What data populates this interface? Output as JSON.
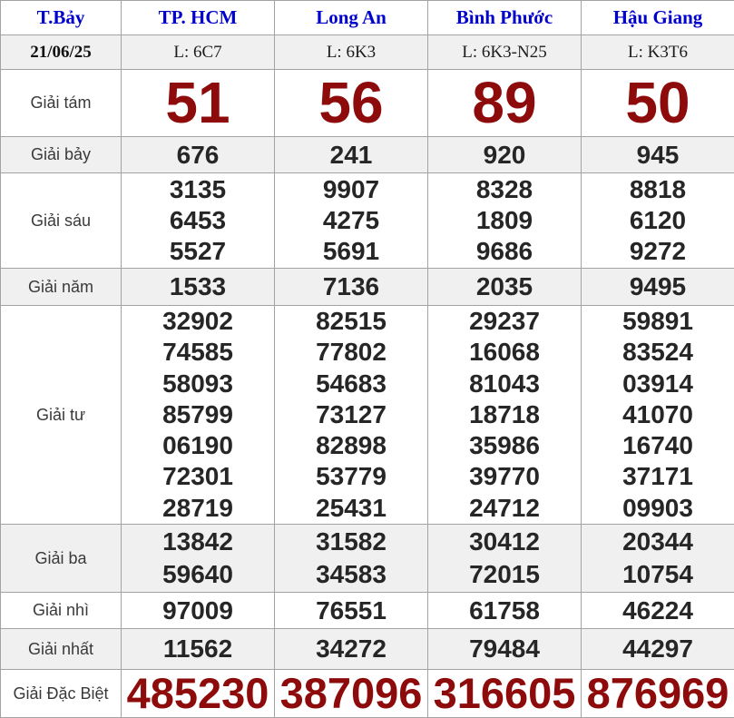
{
  "header": {
    "day": "T.Bảy",
    "provinces": [
      "TP. HCM",
      "Long An",
      "Bình Phước",
      "Hậu Giang"
    ]
  },
  "subheader": {
    "date": "21/06/25",
    "codes": [
      "L: 6C7",
      "L: 6K3",
      "L: 6K3-N25",
      "L: K3T6"
    ]
  },
  "prize_rows": [
    {
      "id": "giai-tam",
      "label": "Giải tám",
      "style": "r-tam",
      "cells": [
        [
          "51"
        ],
        [
          "56"
        ],
        [
          "89"
        ],
        [
          "50"
        ]
      ]
    },
    {
      "id": "giai-bay",
      "label": "Giải bảy",
      "style": "r-bay",
      "cells": [
        [
          "676"
        ],
        [
          "241"
        ],
        [
          "920"
        ],
        [
          "945"
        ]
      ]
    },
    {
      "id": "giai-sau",
      "label": "Giải sáu",
      "style": "r-sau",
      "cells": [
        [
          "3135",
          "6453",
          "5527"
        ],
        [
          "9907",
          "4275",
          "5691"
        ],
        [
          "8328",
          "1809",
          "9686"
        ],
        [
          "8818",
          "6120",
          "9272"
        ]
      ]
    },
    {
      "id": "giai-nam",
      "label": "Giải năm",
      "style": "r-nam",
      "cells": [
        [
          "1533"
        ],
        [
          "7136"
        ],
        [
          "2035"
        ],
        [
          "9495"
        ]
      ]
    },
    {
      "id": "giai-tu",
      "label": "Giải tư",
      "style": "r-tu",
      "cells": [
        [
          "32902",
          "74585",
          "58093",
          "85799",
          "06190",
          "72301",
          "28719"
        ],
        [
          "82515",
          "77802",
          "54683",
          "73127",
          "82898",
          "53779",
          "25431"
        ],
        [
          "29237",
          "16068",
          "81043",
          "18718",
          "35986",
          "39770",
          "24712"
        ],
        [
          "59891",
          "83524",
          "03914",
          "41070",
          "16740",
          "37171",
          "09903"
        ]
      ]
    },
    {
      "id": "giai-ba",
      "label": "Giải ba",
      "style": "r-ba",
      "cells": [
        [
          "13842",
          "59640"
        ],
        [
          "31582",
          "34583"
        ],
        [
          "30412",
          "72015"
        ],
        [
          "20344",
          "10754"
        ]
      ]
    },
    {
      "id": "giai-nhi",
      "label": "Giải nhì",
      "style": "r-nhi",
      "cells": [
        [
          "97009"
        ],
        [
          "76551"
        ],
        [
          "61758"
        ],
        [
          "46224"
        ]
      ]
    },
    {
      "id": "giai-nhat",
      "label": "Giải nhất",
      "style": "r-nhat",
      "cells": [
        [
          "11562"
        ],
        [
          "34272"
        ],
        [
          "79484"
        ],
        [
          "44297"
        ]
      ]
    },
    {
      "id": "giai-dac-biet",
      "label": "Giải Đặc Biệt",
      "style": "r-db",
      "cells": [
        [
          "485230"
        ],
        [
          "387096"
        ],
        [
          "316605"
        ],
        [
          "876969"
        ]
      ]
    }
  ],
  "row_shading": [
    "giai-bay",
    "giai-nam",
    "giai-ba",
    "giai-nhat"
  ],
  "colors": {
    "header_blue": "#0000cc",
    "prize_red": "#8e0b0b",
    "number_black": "#262626",
    "row_alt_bg": "#f0f0f0",
    "border_gray": "#a3a3a3"
  }
}
